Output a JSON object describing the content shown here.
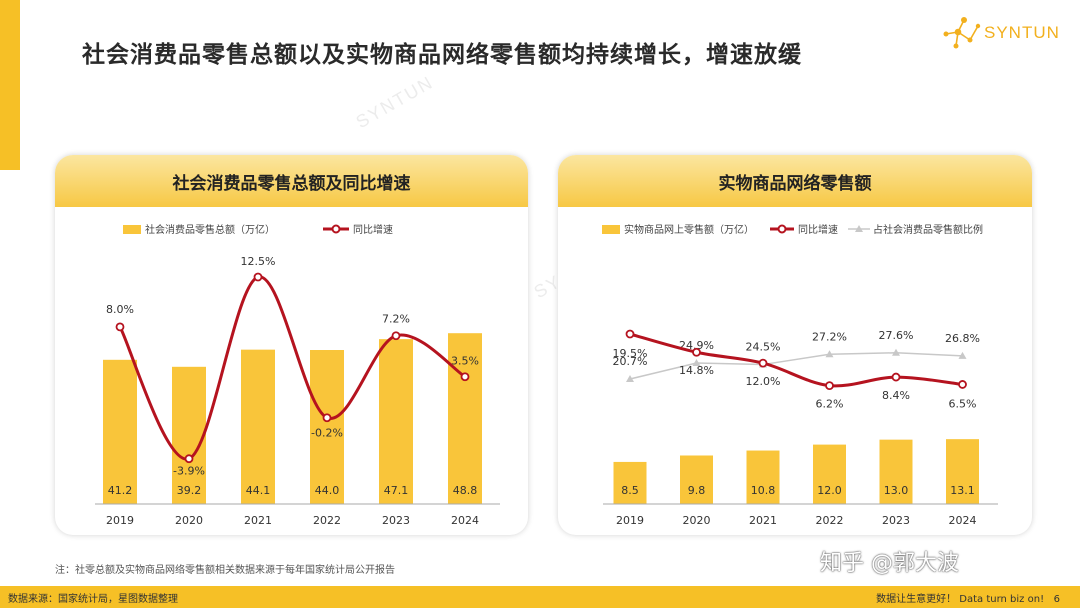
{
  "title": "社会消费品零售总额以及实物商品网络零售额均持续增长，增速放缓",
  "logo_text": "SYNTUN",
  "watermark": "SYNTUN",
  "colors": {
    "bar": "#f9c53a",
    "growth": "#b5131f",
    "share": "#c8c8c8",
    "accent": "#f6c026"
  },
  "chart_data": [
    {
      "type": "bar",
      "title": "社会消费品零售总额及同比增速",
      "categories": [
        "2019",
        "2020",
        "2021",
        "2022",
        "2023",
        "2024"
      ],
      "series": [
        {
          "name": "社会消费品零售总额（万亿）",
          "type": "bar",
          "values": [
            41.2,
            39.2,
            44.1,
            44.0,
            47.1,
            48.8
          ],
          "labels": [
            "41.2",
            "39.2",
            "44.1",
            "44.0",
            "47.1",
            "48.8"
          ]
        },
        {
          "name": "同比增速",
          "type": "line",
          "smooth": true,
          "values": [
            8.0,
            -3.9,
            12.5,
            -0.2,
            7.2,
            3.5
          ],
          "labels": [
            "8.0%",
            "-3.9%",
            "12.5%",
            "-0.2%",
            "7.2%",
            "3.5%"
          ]
        }
      ],
      "legend_position": "top-left",
      "grid": false
    },
    {
      "type": "bar",
      "title": "实物商品网络零售额",
      "categories": [
        "2019",
        "2020",
        "2021",
        "2022",
        "2023",
        "2024"
      ],
      "series": [
        {
          "name": "实物商品网上零售额（万亿）",
          "type": "bar",
          "values": [
            8.5,
            9.8,
            10.8,
            12.0,
            13.0,
            13.1
          ],
          "labels": [
            "8.5",
            "9.8",
            "10.8",
            "12.0",
            "13.0",
            "13.1"
          ]
        },
        {
          "name": "同比增速",
          "type": "line",
          "smooth": true,
          "values": [
            19.5,
            14.8,
            12.0,
            6.2,
            8.4,
            6.5
          ],
          "labels": [
            "19.5%",
            "14.8%",
            "12.0%",
            "6.2%",
            "8.4%",
            "6.5%"
          ]
        },
        {
          "name": "占社会消费品零售额比例",
          "type": "line",
          "values": [
            20.7,
            24.9,
            24.5,
            27.2,
            27.6,
            26.8
          ],
          "labels": [
            "20.7%",
            "24.9%",
            "24.5%",
            "27.2%",
            "27.6%",
            "26.8%"
          ]
        }
      ],
      "legend_position": "top-left",
      "grid": false
    }
  ],
  "note": "注：社零总额及实物商品网络零售额相关数据来源于每年国家统计局公开报告",
  "footer": {
    "source": "数据来源：国家统计局，星图数据整理",
    "slogan": "数据让生意更好！ Data turn biz on!",
    "page": "6"
  },
  "zhihu_watermark": "知乎 @郭大波"
}
